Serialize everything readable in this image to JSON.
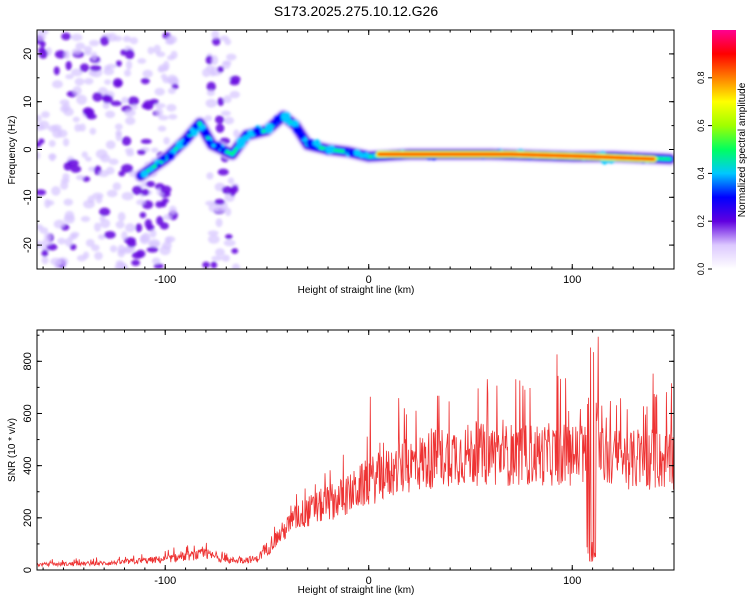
{
  "title": "S173.2025.275.10.12.G26",
  "chart_data": [
    {
      "type": "heatmap",
      "title": "S173.2025.275.10.12.G26",
      "xlabel": "Height of straight line (km)",
      "ylabel": "Frequency (Hz)",
      "xlim": [
        -163,
        150
      ],
      "ylim": [
        -25,
        25
      ],
      "x_ticks": [
        -100,
        0,
        100
      ],
      "y_ticks": [
        -20,
        -10,
        0,
        10,
        20
      ],
      "x_tick_labels": [
        "-100",
        "0",
        "100"
      ],
      "y_tick_labels": [
        "-20",
        "-10",
        "0",
        "10",
        "20"
      ],
      "colorbar": {
        "label": "Normalized spectral amplitude",
        "range": [
          0,
          1
        ],
        "ticks": [
          "0.0",
          "0.2",
          "0.4",
          "0.6",
          "0.8"
        ],
        "colors": [
          "#ffffff",
          "#dcc8ff",
          "#6000e0",
          "#0000ff",
          "#00c8ff",
          "#00ff60",
          "#a0ff00",
          "#ffff00",
          "#ff8000",
          "#ff0000",
          "#ff0090"
        ]
      },
      "ridge": [
        [
          -112,
          -5.5
        ],
        [
          -100,
          -2
        ],
        [
          -90,
          2
        ],
        [
          -83,
          5.5
        ],
        [
          -77,
          1
        ],
        [
          -67,
          -1
        ],
        [
          -60,
          3
        ],
        [
          -50,
          4
        ],
        [
          -42,
          7
        ],
        [
          -36,
          5
        ],
        [
          -30,
          1
        ],
        [
          -20,
          0
        ],
        [
          -10,
          -0.5
        ],
        [
          0,
          -1.5
        ],
        [
          20,
          -1
        ],
        [
          60,
          -1
        ],
        [
          100,
          -1.5
        ],
        [
          120,
          -1.5
        ],
        [
          148,
          -2
        ]
      ],
      "strong_segment": [
        [
          5,
          -1
        ],
        [
          70,
          -1
        ],
        [
          110,
          -1.5
        ],
        [
          140,
          -2
        ]
      ],
      "noise_regions": [
        [
          -163,
          -95,
          -25,
          25
        ],
        [
          -80,
          -65,
          -25,
          25
        ]
      ]
    },
    {
      "type": "line",
      "xlabel": "Height of straight line (km)",
      "ylabel": "SNR (10 * v/v)",
      "xlim": [
        -163,
        150
      ],
      "ylim": [
        0,
        920
      ],
      "x_ticks": [
        -100,
        0,
        100
      ],
      "y_ticks": [
        0,
        200,
        400,
        600,
        800
      ],
      "x_tick_labels": [
        "-100",
        "0",
        "100"
      ],
      "y_tick_labels": [
        "0",
        "200",
        "400",
        "600",
        "800"
      ],
      "series": [
        {
          "name": "SNR",
          "color": "#ee3333",
          "envelope_x": [
            -163,
            -130,
            -100,
            -80,
            -70,
            -55,
            -45,
            -35,
            -20,
            -10,
            0,
            20,
            40,
            60,
            80,
            100,
            106,
            110,
            115,
            130,
            150
          ],
          "envelope_y": [
            20,
            25,
            40,
            60,
            35,
            40,
            120,
            200,
            250,
            280,
            330,
            390,
            430,
            430,
            430,
            430,
            430,
            430,
            420,
            410,
            410
          ],
          "spike": [
            [
              108,
              900
            ],
            [
              110,
              30
            ],
            [
              112,
              700
            ]
          ]
        }
      ]
    }
  ]
}
